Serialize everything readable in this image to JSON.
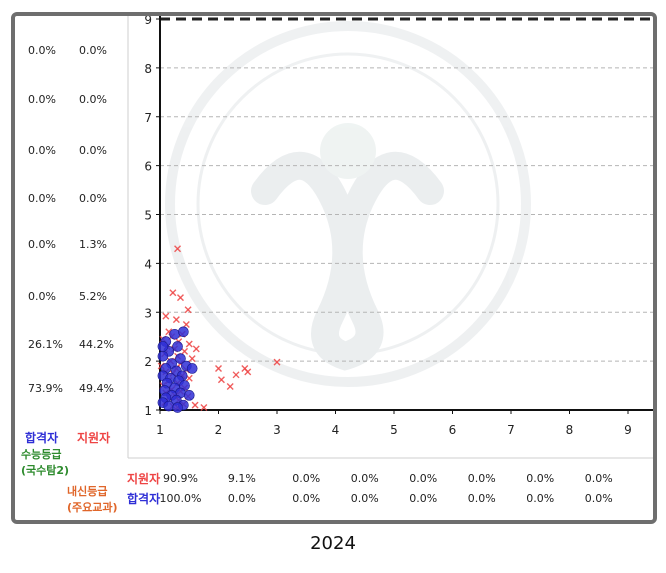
{
  "left_table": {
    "rows": [
      {
        "pass": "0.0%",
        "apply": "0.0%"
      },
      {
        "pass": "0.0%",
        "apply": "0.0%"
      },
      {
        "pass": "0.0%",
        "apply": "0.0%"
      },
      {
        "pass": "0.0%",
        "apply": "0.0%"
      },
      {
        "pass": "0.0%",
        "apply": "1.3%"
      },
      {
        "pass": "0.0%",
        "apply": "5.2%"
      },
      {
        "pass": "26.1%",
        "apply": "44.2%"
      },
      {
        "pass": "73.9%",
        "apply": "49.4%"
      }
    ],
    "legend_pass": "합격자",
    "legend_apply": "지원자",
    "y_axis_title_line1": "수능등급",
    "y_axis_title_line2": "(국수탐2)"
  },
  "bottom_table": {
    "x_axis_title_line1": "내신등급",
    "x_axis_title_line2": "(주요교과)",
    "apply_label": "지원자",
    "pass_label": "합격자",
    "apply_values": [
      "90.9%",
      "9.1%",
      "0.0%",
      "0.0%",
      "0.0%",
      "0.0%",
      "0.0%",
      "0.0%"
    ],
    "pass_values": [
      "100.0%",
      "0.0%",
      "0.0%",
      "0.0%",
      "0.0%",
      "0.0%",
      "0.0%",
      "0.0%"
    ]
  },
  "caption": "2024",
  "colors": {
    "pass": "#2f2fd6",
    "apply": "#ee4444",
    "axis_title": "#2e8b2e",
    "x_axis_title": "#e0662a"
  },
  "chart_data": {
    "type": "scatter",
    "x_ticks": [
      "1",
      "2",
      "3",
      "4",
      "5",
      "6",
      "7",
      "8",
      "9"
    ],
    "y_ticks": [
      "1",
      "2",
      "3",
      "4",
      "5",
      "6",
      "7",
      "8",
      "9"
    ],
    "xlim": [
      1,
      9
    ],
    "ylim": [
      1,
      9
    ],
    "grid": "horizontal-dashed",
    "series": [
      {
        "name": "지원자",
        "marker": "x",
        "points": [
          [
            1.3,
            4.3
          ],
          [
            1.22,
            3.4
          ],
          [
            1.35,
            3.3
          ],
          [
            1.48,
            3.05
          ],
          [
            1.1,
            2.92
          ],
          [
            1.28,
            2.85
          ],
          [
            1.45,
            2.75
          ],
          [
            1.15,
            2.6
          ],
          [
            1.38,
            2.55
          ],
          [
            1.2,
            2.5
          ],
          [
            1.05,
            2.45
          ],
          [
            1.32,
            2.4
          ],
          [
            1.5,
            2.35
          ],
          [
            1.12,
            2.3
          ],
          [
            1.25,
            2.25
          ],
          [
            1.42,
            2.2
          ],
          [
            1.08,
            2.15
          ],
          [
            1.3,
            2.1
          ],
          [
            1.55,
            2.05
          ],
          [
            1.18,
            2.0
          ],
          [
            1.35,
            1.95
          ],
          [
            1.02,
            1.9
          ],
          [
            1.28,
            1.85
          ],
          [
            1.45,
            1.82
          ],
          [
            1.1,
            1.78
          ],
          [
            1.22,
            1.75
          ],
          [
            1.38,
            1.7
          ],
          [
            1.5,
            1.65
          ],
          [
            1.15,
            1.6
          ],
          [
            1.3,
            1.55
          ],
          [
            1.05,
            1.5
          ],
          [
            1.42,
            1.45
          ],
          [
            1.2,
            1.42
          ],
          [
            1.35,
            1.38
          ],
          [
            1.1,
            1.35
          ],
          [
            1.25,
            1.3
          ],
          [
            1.48,
            1.28
          ],
          [
            1.15,
            1.25
          ],
          [
            1.32,
            1.2
          ],
          [
            1.08,
            1.15
          ],
          [
            1.4,
            1.12
          ],
          [
            1.22,
            1.08
          ],
          [
            1.3,
            1.05
          ],
          [
            1.6,
            1.1
          ],
          [
            1.75,
            1.05
          ],
          [
            2.0,
            1.85
          ],
          [
            2.05,
            1.62
          ],
          [
            2.2,
            1.48
          ],
          [
            2.3,
            1.72
          ],
          [
            2.45,
            1.85
          ],
          [
            2.5,
            1.78
          ],
          [
            3.0,
            1.98
          ],
          [
            1.62,
            2.25
          ]
        ]
      },
      {
        "name": "합격자",
        "marker": "circle",
        "points": [
          [
            1.1,
            2.4
          ],
          [
            1.25,
            2.55
          ],
          [
            1.4,
            2.6
          ],
          [
            1.15,
            2.2
          ],
          [
            1.3,
            2.3
          ],
          [
            1.05,
            2.1
          ],
          [
            1.35,
            2.05
          ],
          [
            1.2,
            1.95
          ],
          [
            1.45,
            1.9
          ],
          [
            1.1,
            1.85
          ],
          [
            1.28,
            1.8
          ],
          [
            1.05,
            1.7
          ],
          [
            1.38,
            1.7
          ],
          [
            1.18,
            1.65
          ],
          [
            1.32,
            1.6
          ],
          [
            1.12,
            1.55
          ],
          [
            1.42,
            1.5
          ],
          [
            1.25,
            1.45
          ],
          [
            1.08,
            1.4
          ],
          [
            1.35,
            1.35
          ],
          [
            1.2,
            1.3
          ],
          [
            1.5,
            1.3
          ],
          [
            1.1,
            1.25
          ],
          [
            1.28,
            1.2
          ],
          [
            1.05,
            1.15
          ],
          [
            1.4,
            1.1
          ],
          [
            1.15,
            1.08
          ],
          [
            1.3,
            1.05
          ],
          [
            1.55,
            1.85
          ],
          [
            1.05,
            2.3
          ]
        ]
      }
    ]
  }
}
